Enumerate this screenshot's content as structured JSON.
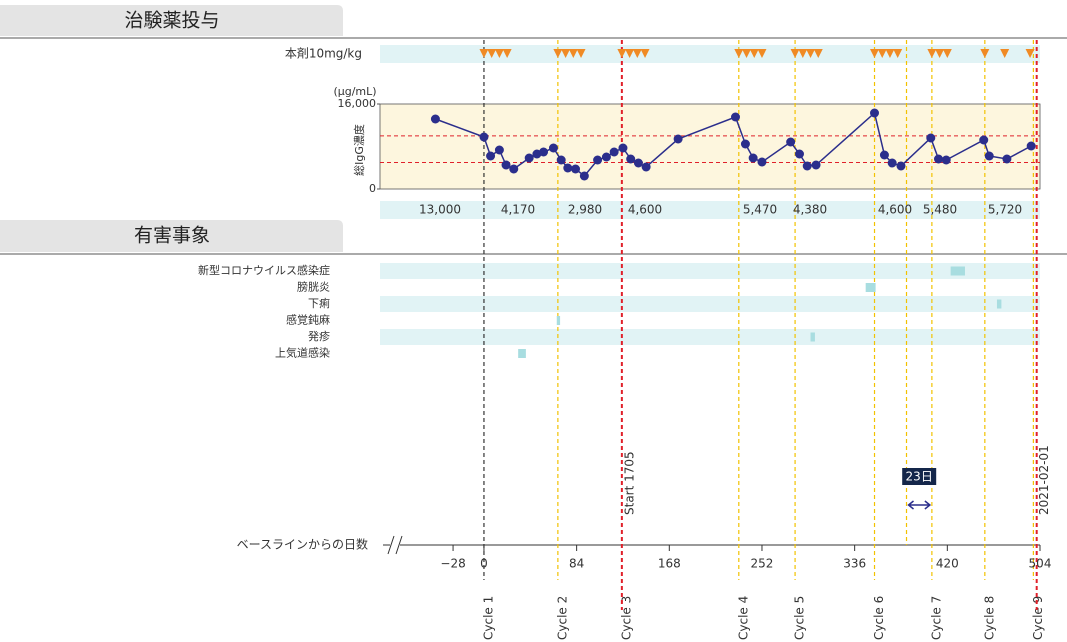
{
  "sections": {
    "dosing": "治験薬投与",
    "adverse_events": "有害事象"
  },
  "chart_data": {
    "type": "timeline",
    "x_axis_label": "ベースラインからの日数",
    "xlim": [
      -48,
      504
    ],
    "xticks": [
      {
        "value": -28,
        "label": "−28"
      },
      0,
      84,
      168,
      252,
      336,
      420,
      504
    ],
    "dose_label": "本剤10mg/kg",
    "dose_color": "#f08a24",
    "dose_days": [
      0,
      7,
      14,
      21,
      67,
      74,
      81,
      88,
      125,
      132,
      139,
      146,
      231,
      238,
      245,
      252,
      282,
      289,
      296,
      303,
      354,
      361,
      368,
      375,
      406,
      413,
      420,
      454,
      472,
      495
    ],
    "concentration": {
      "y_label": "総IgG濃度",
      "unit": "(µg/mL)",
      "ylim": [
        0,
        16000
      ],
      "yticks": [
        0,
        {
          "value": 16000,
          "label": "16,000"
        }
      ],
      "reference_lines": [
        5000,
        10000
      ],
      "color": "#2b2e8c",
      "x": [
        -44,
        0,
        6,
        14,
        20,
        27,
        41,
        48,
        54,
        63,
        70,
        76,
        83,
        91,
        103,
        111,
        118,
        126,
        133,
        140,
        147,
        176,
        228,
        237,
        244,
        252,
        278,
        286,
        293,
        301,
        354,
        363,
        370,
        378,
        405,
        412,
        419,
        453,
        458,
        474,
        496
      ],
      "values": [
        13176,
        9788,
        6212,
        7341,
        4518,
        3765,
        5835,
        6588,
        6965,
        7718,
        5459,
        3953,
        3765,
        2447,
        5459,
        6024,
        6965,
        7718,
        5647,
        4894,
        4141,
        9412,
        13553,
        8471,
        5835,
        5082,
        8847,
        6588,
        4329,
        4518,
        14306,
        6400,
        4894,
        4329,
        9600,
        5647,
        5459,
        9224,
        6212,
        5647,
        8094
      ]
    },
    "troughs": {
      "values": [
        13000,
        4170,
        2980,
        4600,
        5470,
        4380,
        4600,
        5480,
        5720
      ],
      "value_labels": [
        "13,000",
        "4,170",
        "2,980",
        "4,600",
        "5,470",
        "4,380",
        "4,600",
        "5,480",
        "5,720"
      ]
    },
    "cycles": {
      "names": [
        "Cycle 1",
        "Cycle 2",
        "Cycle 3",
        "Cycle 4",
        "Cycle 5",
        "Cycle 6",
        "Cycle 7",
        "Cycle 8",
        "Cycle 9"
      ],
      "x": [
        0,
        67,
        125,
        231,
        282,
        354,
        406,
        454,
        498
      ]
    },
    "events": [
      {
        "name": "新型コロナウイルス感染症",
        "start": 423,
        "end": 436
      },
      {
        "name": "膀胱炎",
        "start": 346,
        "end": 355
      },
      {
        "name": "下痢",
        "start": 465,
        "end": 469
      },
      {
        "name": "感覚鈍麻",
        "start": 66,
        "end": 69
      },
      {
        "name": "発疹",
        "start": 296,
        "end": 300
      },
      {
        "name": "上気道感染",
        "start": 31,
        "end": 38
      }
    ],
    "annotations": [
      {
        "text": "Start 1705",
        "x": 125
      },
      {
        "text": "2021-02-01",
        "x": 501
      }
    ],
    "interval": {
      "label": "23日",
      "x": [
        383,
        406
      ]
    }
  }
}
